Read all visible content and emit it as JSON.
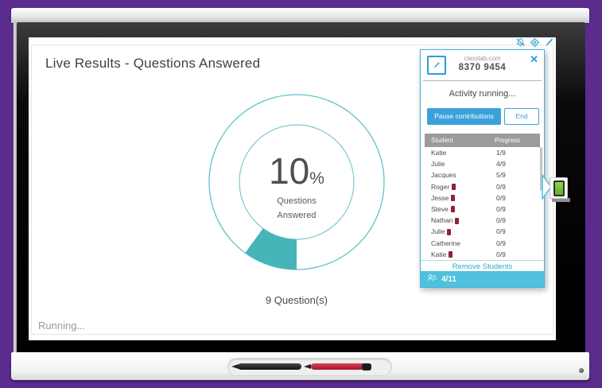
{
  "colors": {
    "accent_blue": "#2d9cdb",
    "teal": "#45b5ba",
    "panel_footer_cyan": "#4ec1dc",
    "background_purple": "#5b2c8e",
    "table_header_gray": "#9b9b9b",
    "disconnected_red": "#8e2237",
    "device_green": "#7cc838"
  },
  "screen": {
    "title": "Live Results - Questions Answered",
    "status_text": "Running...",
    "questions_count_label": "9 Question(s)",
    "toolbar_icons": [
      "mute-icon",
      "gear-icon",
      "pen-icon"
    ]
  },
  "chart_data": {
    "type": "donut",
    "title": "Live Results - Questions Answered",
    "percent": 10,
    "center_value": "10",
    "center_suffix": "%",
    "center_label_line1": "Questions",
    "center_label_line2": "Answered",
    "color": "#45b5ba",
    "ring_outer_radius": 110,
    "ring_inner_radius": 72,
    "start_angle_deg": 180
  },
  "panel": {
    "site": "classlab.com",
    "code": "8370 9454",
    "close_glyph": "✕",
    "activity_status": "Activity running...",
    "pause_button_label": "Pause contributions",
    "end_button_label": "End",
    "table": {
      "headers": [
        "Student",
        "Progress"
      ],
      "rows": [
        {
          "name": "Katie",
          "progress": "1/9",
          "disconnected": false
        },
        {
          "name": "Julie",
          "progress": "4/9",
          "disconnected": false
        },
        {
          "name": "Jacques",
          "progress": "5/9",
          "disconnected": false
        },
        {
          "name": "Roger",
          "progress": "0/9",
          "disconnected": true
        },
        {
          "name": "Jesse",
          "progress": "0/9",
          "disconnected": true
        },
        {
          "name": "Steve",
          "progress": "0/9",
          "disconnected": true
        },
        {
          "name": "Nathan",
          "progress": "0/9",
          "disconnected": true
        },
        {
          "name": "Julie",
          "progress": "0/9",
          "disconnected": true
        },
        {
          "name": "Catherine",
          "progress": "0/9",
          "disconnected": false
        },
        {
          "name": "Katie",
          "progress": "0/9",
          "disconnected": true
        }
      ]
    },
    "remove_students_label": "Remove Students",
    "joined_count": "4/11"
  }
}
